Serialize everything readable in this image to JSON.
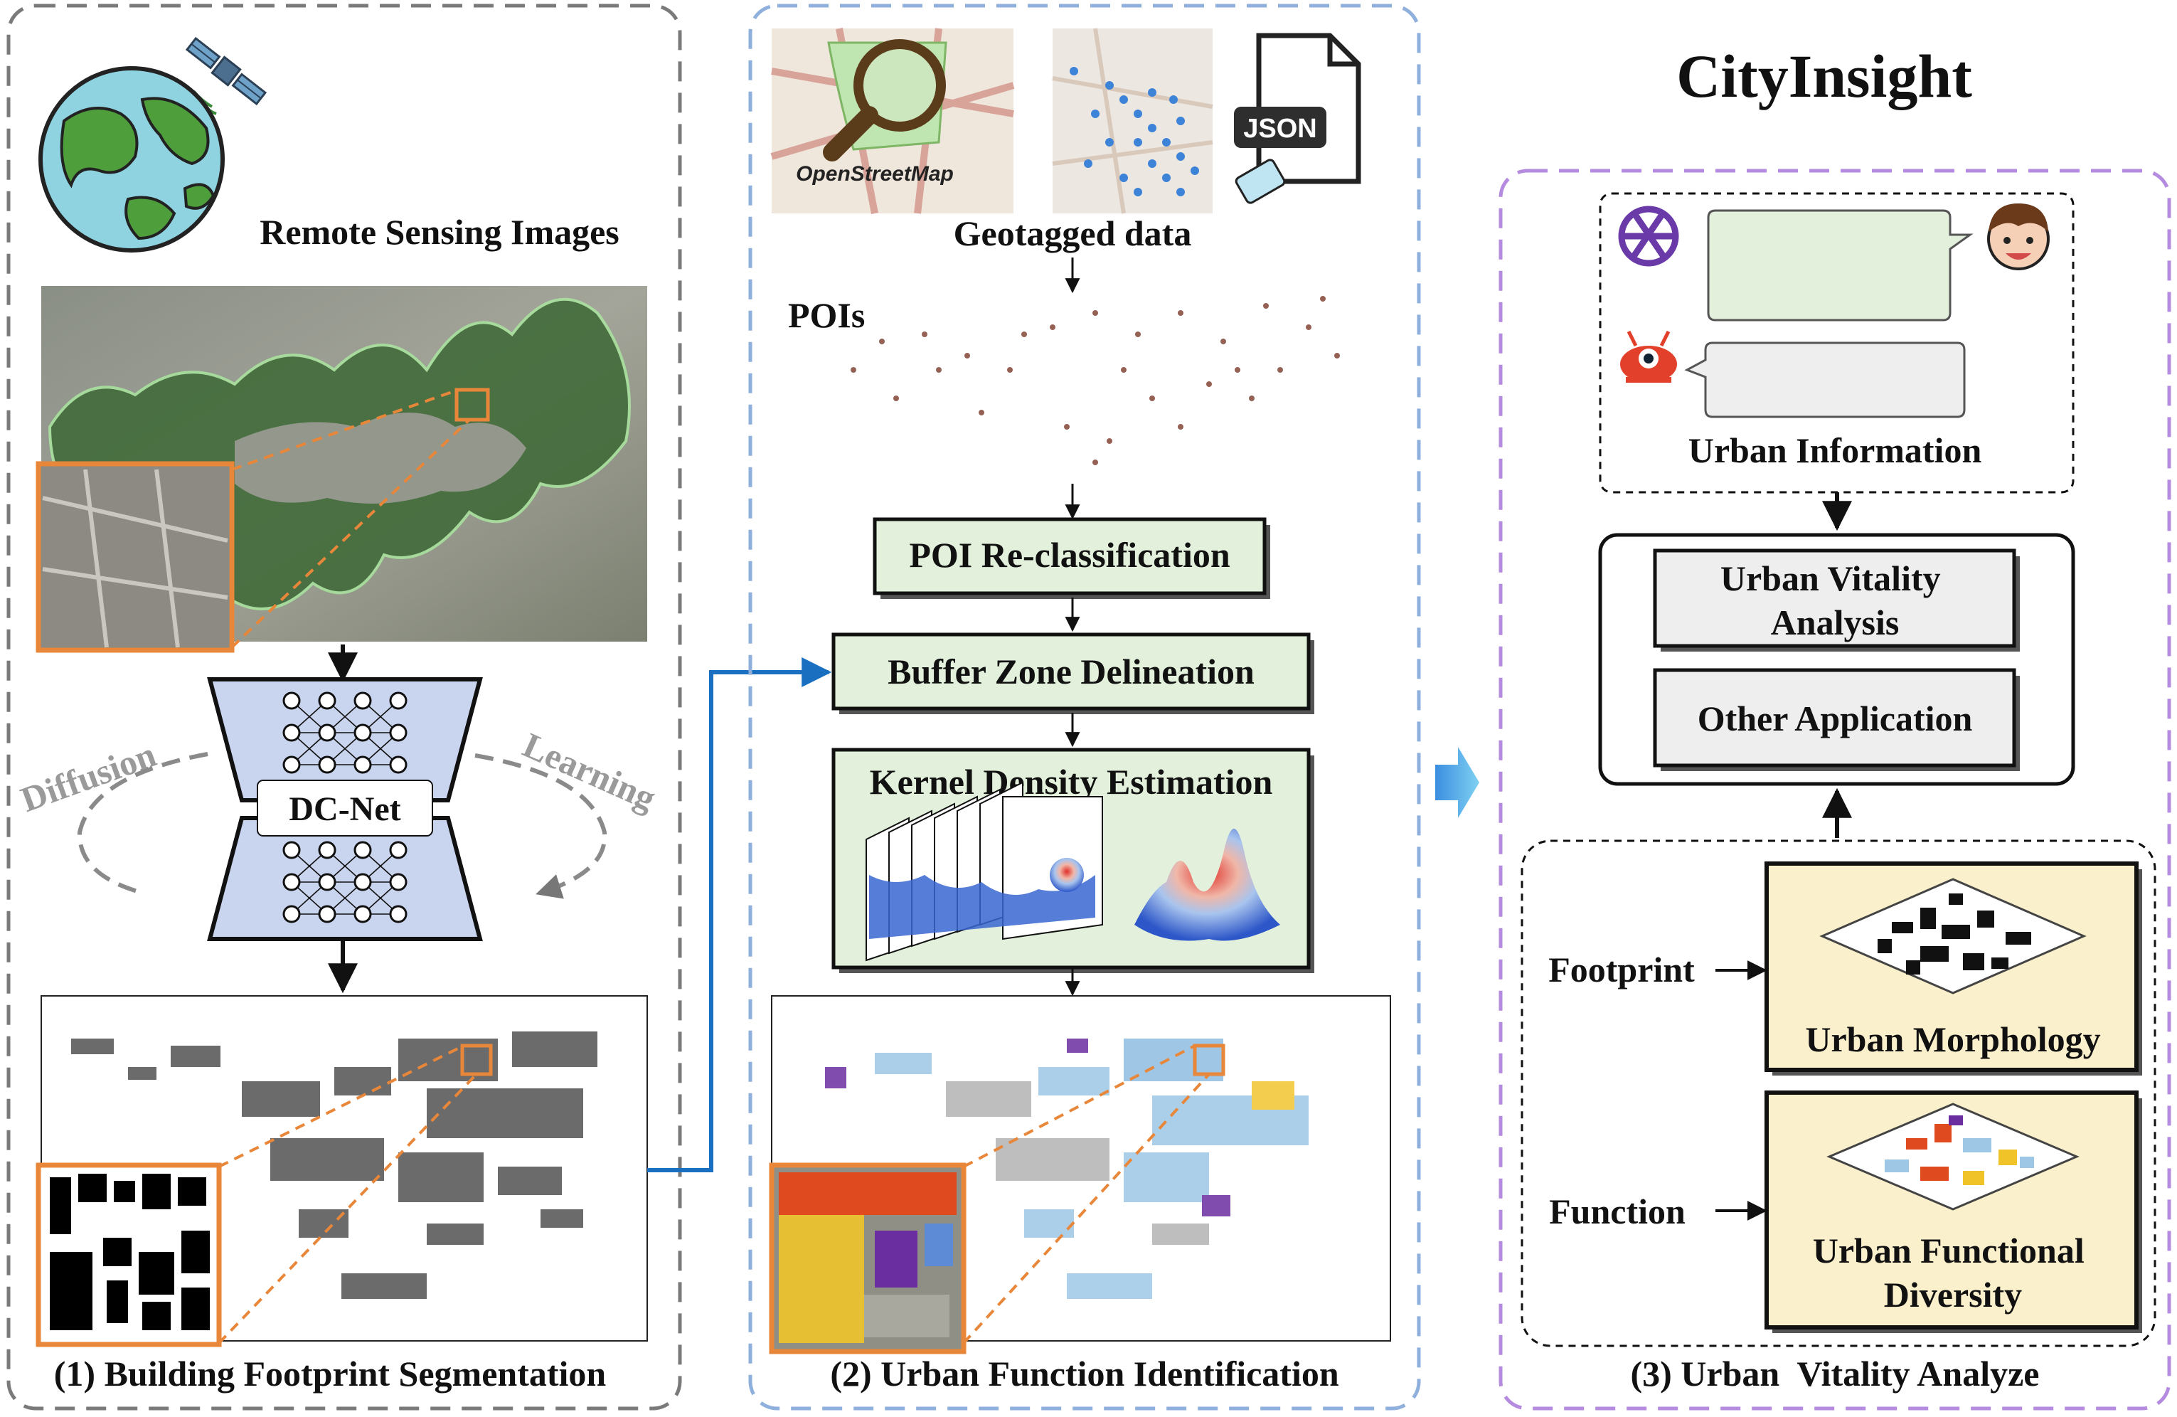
{
  "title": "CityInsight",
  "colors": {
    "panel1_border": "#7a7a7a",
    "panel2_border": "#8fb0dc",
    "panel3_border": "#b58be0",
    "process_fill": "#e3f1dc",
    "application_fill": "#eeeeee",
    "feature_fill": "#fbf0cc",
    "dcnet_fill": "#c9d4ee",
    "arrow_blue": "#1a6fc0",
    "highlight_orange": "#e8873a"
  },
  "panel1": {
    "remote_sensing_label": "Remote Sensing Images",
    "model_label": "DC-Net",
    "diffusion_label": "Diffusion",
    "learning_label": "Learning",
    "caption": "(1) Building Footprint Segmentation"
  },
  "panel2": {
    "osm_label": "OpenStreetMap",
    "json_label": "JSON",
    "geotagged_label": "Geotagged data",
    "pois_label": "POIs",
    "steps": [
      "POI Re-classification",
      "Buffer Zone Delineation",
      "Kernel Density Estimation"
    ],
    "caption": "(2) Urban Function Identification"
  },
  "panel3": {
    "urban_information_label": "Urban Information",
    "applications": [
      "Urban Vitality\nAnalysis",
      "Other Application"
    ],
    "footprint_label": "Footprint",
    "function_label": "Function",
    "morphology_label": "Urban Morphology",
    "diversity_label": "Urban Functional\nDiversity",
    "caption": "(3) Urban  Vitality Analyze"
  },
  "icons": [
    "satellite-icon",
    "globe-icon",
    "magnifier-icon",
    "json-file-icon",
    "openai-icon",
    "user-face-icon",
    "robot-icon"
  ]
}
